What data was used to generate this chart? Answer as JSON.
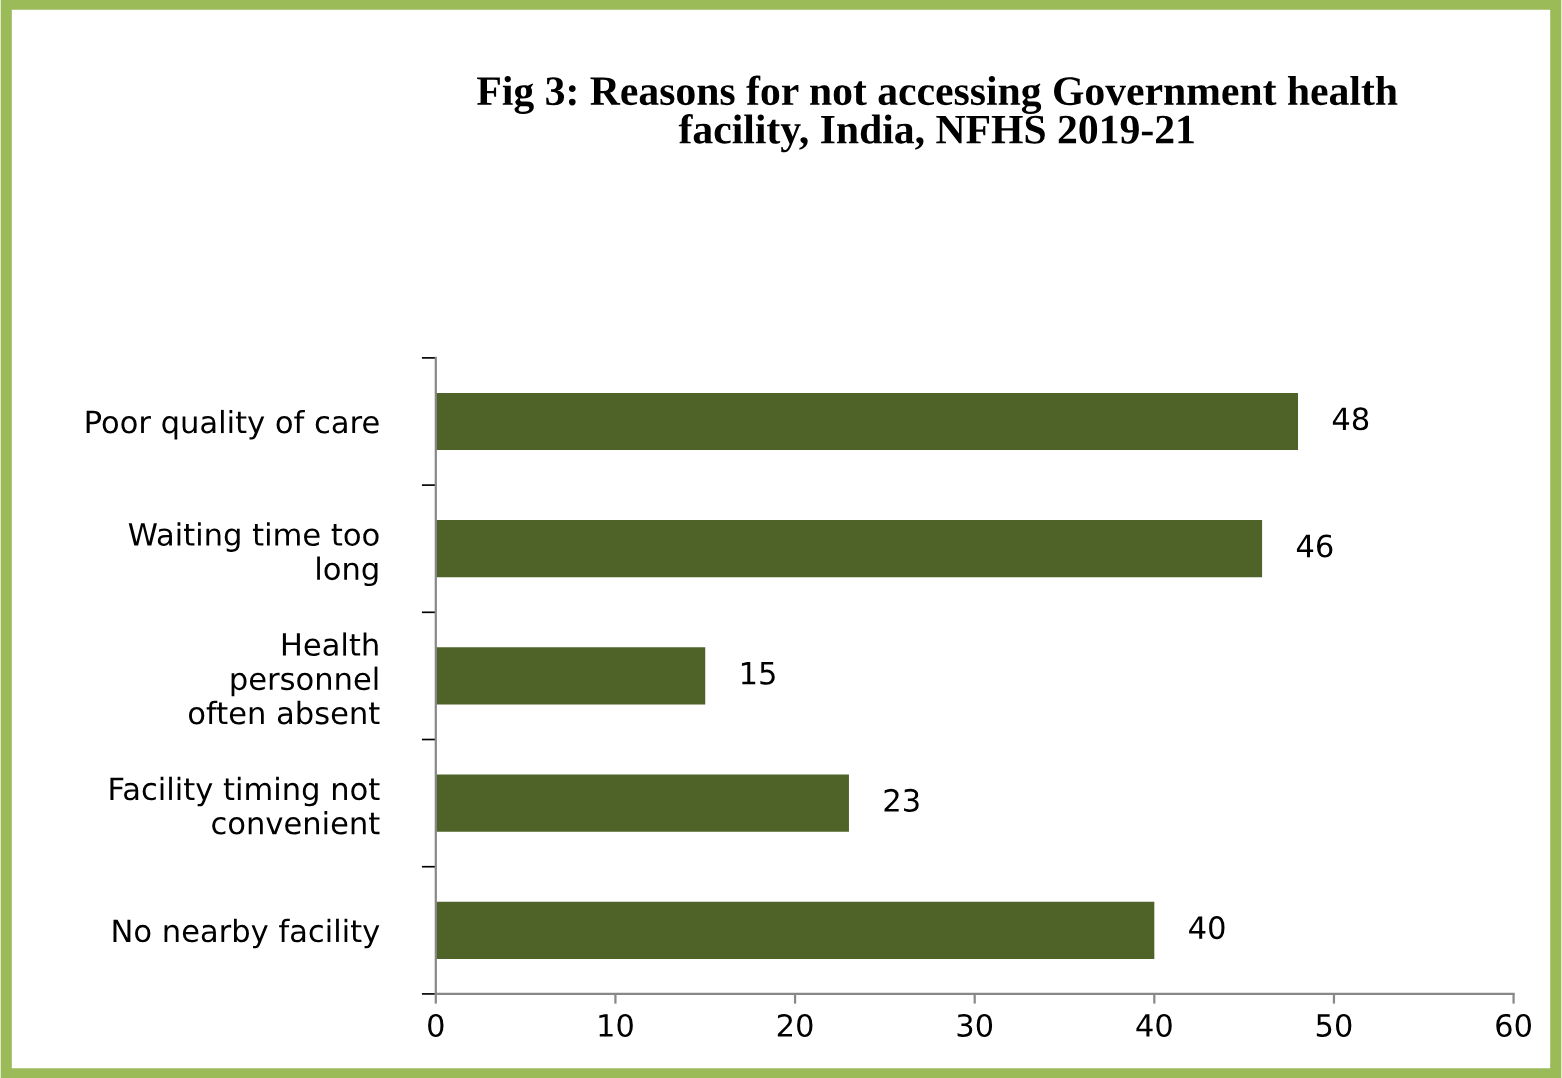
{
  "chart_data": {
    "type": "bar",
    "orientation": "horizontal",
    "title": "Fig 3: Reasons for not accessing Government health\nfacility, India, NFHS 2019-21",
    "categories": [
      "Poor quality of care",
      "Waiting time too\nlong",
      "Health\npersonnel\noften absent",
      "Facility timing not\nconvenient",
      "No nearby facility"
    ],
    "values": [
      48,
      46,
      15,
      23,
      40
    ],
    "color": "#4f6228",
    "xlim": [
      0,
      60
    ],
    "xticks": [
      0,
      10,
      20,
      30,
      40,
      50,
      60
    ],
    "grid": false,
    "data_labels": true
  }
}
